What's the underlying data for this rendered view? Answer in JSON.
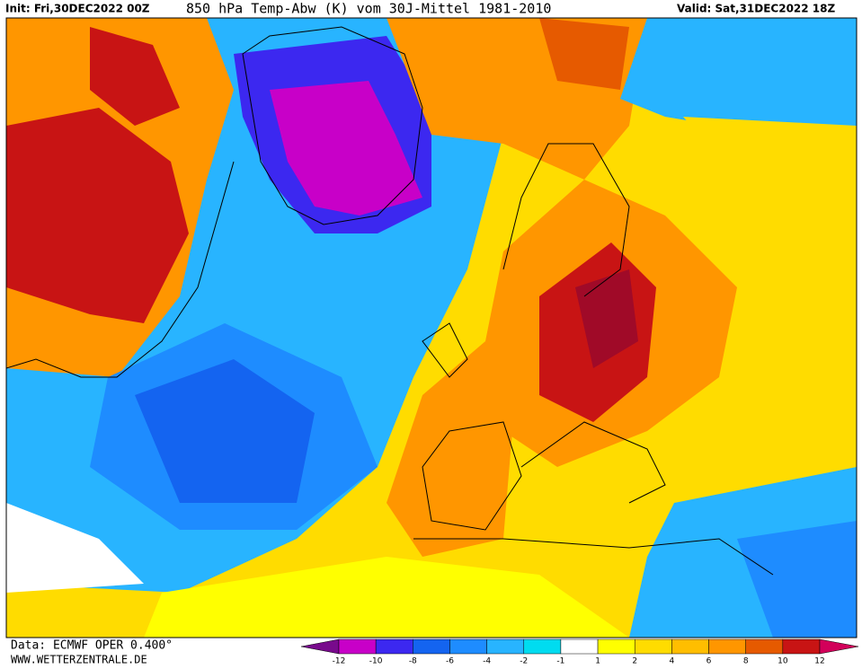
{
  "header": {
    "init": "Init: Fri,30DEC2022 00Z",
    "title": "850 hPa Temp-Abw (K) vom 30J-Mittel 1981-2010",
    "valid": "Valid: Sat,31DEC2022 18Z"
  },
  "footer": {
    "data": "Data: ECMWF OPER 0.400°",
    "site": "WWW.WETTERZENTRALE.DE"
  },
  "colorbar": {
    "labels": [
      "-12",
      "-10",
      "-8",
      "-6",
      "-4",
      "-2",
      "-1",
      "1",
      "2",
      "4",
      "6",
      "8",
      "10",
      "12"
    ],
    "colors": [
      "#780a8c",
      "#c800c8",
      "#3c28f0",
      "#1464f0",
      "#1e8cff",
      "#28b4ff",
      "#00dcf0",
      "#ffffff",
      "#ffff00",
      "#ffdc00",
      "#ffbe00",
      "#ff9600",
      "#e65a00",
      "#c81414",
      "#d2005a"
    ]
  }
}
